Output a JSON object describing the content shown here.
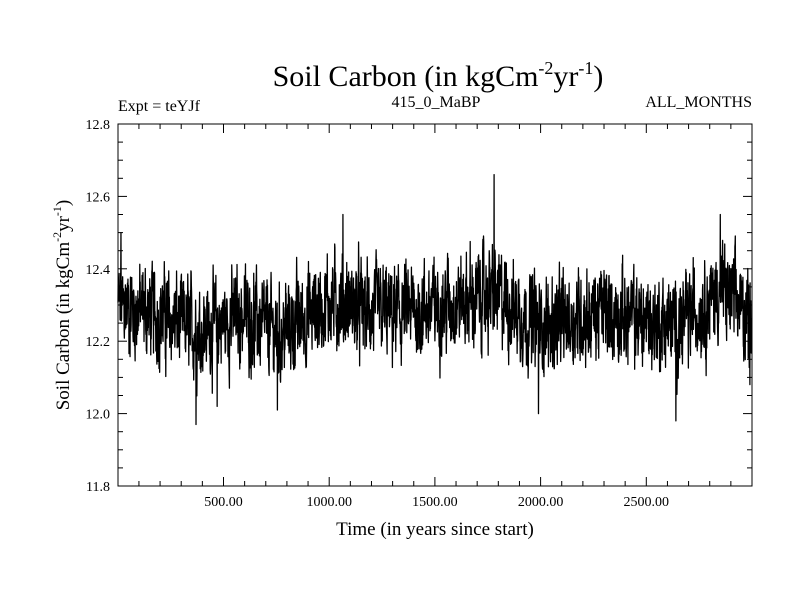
{
  "chart_data": {
    "type": "line",
    "title_main": "Soil Carbon (in kgCm",
    "title_sup1": "-2",
    "title_mid": "yr",
    "title_sup2": "-1",
    "title_end": ")",
    "subtitle_left": "Expt = teYJf",
    "subtitle_center": "415_0_MaBP",
    "subtitle_right": "ALL_MONTHS",
    "xlabel": "Time (in years since start)",
    "ylabel_main": "Soil Carbon (in kgCm",
    "ylabel_sup1": "-2",
    "ylabel_mid": "yr",
    "ylabel_sup2": "-1",
    "ylabel_end": ")",
    "xlim": [
      1,
      3000
    ],
    "ylim": [
      11.8,
      12.8
    ],
    "x_ticks": [
      {
        "value": 500,
        "label": "500.00"
      },
      {
        "value": 1000,
        "label": "1000.00"
      },
      {
        "value": 1500,
        "label": "1500.00"
      },
      {
        "value": 2000,
        "label": "2000.00"
      },
      {
        "value": 2500,
        "label": "2500.00"
      }
    ],
    "y_ticks": [
      {
        "value": 11.8,
        "label": "11.8"
      },
      {
        "value": 12.0,
        "label": "12.0"
      },
      {
        "value": 12.2,
        "label": "12.2"
      },
      {
        "value": 12.4,
        "label": "12.4"
      },
      {
        "value": 12.6,
        "label": "12.6"
      },
      {
        "value": 12.8,
        "label": "12.8"
      }
    ],
    "series": [
      {
        "name": "soil carbon",
        "mean": 12.29,
        "noise_amplitude": 0.085,
        "n_points": 3000,
        "slow_trend": [
          {
            "x": 1,
            "y": 12.3
          },
          {
            "x": 150,
            "y": 12.28
          },
          {
            "x": 380,
            "y": 12.23
          },
          {
            "x": 600,
            "y": 12.27
          },
          {
            "x": 760,
            "y": 12.22
          },
          {
            "x": 1000,
            "y": 12.31
          },
          {
            "x": 1300,
            "y": 12.27
          },
          {
            "x": 1780,
            "y": 12.33
          },
          {
            "x": 2000,
            "y": 12.24
          },
          {
            "x": 2300,
            "y": 12.28
          },
          {
            "x": 2650,
            "y": 12.24
          },
          {
            "x": 2850,
            "y": 12.34
          },
          {
            "x": 3000,
            "y": 12.27
          }
        ],
        "extremes": [
          {
            "x": 15,
            "y": 12.5
          },
          {
            "x": 370,
            "y": 11.97
          },
          {
            "x": 470,
            "y": 12.02
          },
          {
            "x": 755,
            "y": 12.01
          },
          {
            "x": 1065,
            "y": 12.55
          },
          {
            "x": 1780,
            "y": 12.66
          },
          {
            "x": 1990,
            "y": 12.0
          },
          {
            "x": 2640,
            "y": 11.98
          },
          {
            "x": 2850,
            "y": 12.55
          },
          {
            "x": 2990,
            "y": 12.08
          }
        ]
      }
    ]
  }
}
